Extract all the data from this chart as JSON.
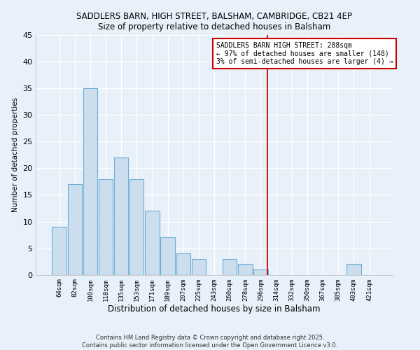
{
  "title": "SADDLERS BARN, HIGH STREET, BALSHAM, CAMBRIDGE, CB21 4EP",
  "subtitle": "Size of property relative to detached houses in Balsham",
  "xlabel": "Distribution of detached houses by size in Balsham",
  "ylabel": "Number of detached properties",
  "bar_labels": [
    "64sqm",
    "82sqm",
    "100sqm",
    "118sqm",
    "135sqm",
    "153sqm",
    "171sqm",
    "189sqm",
    "207sqm",
    "225sqm",
    "243sqm",
    "260sqm",
    "278sqm",
    "296sqm",
    "314sqm",
    "332sqm",
    "350sqm",
    "367sqm",
    "385sqm",
    "403sqm",
    "421sqm"
  ],
  "bar_values": [
    9,
    17,
    35,
    18,
    22,
    18,
    12,
    7,
    4,
    3,
    0,
    3,
    2,
    1,
    0,
    0,
    0,
    0,
    0,
    2,
    0
  ],
  "bar_color": "#ccdded",
  "bar_edge_color": "#6aafd6",
  "background_color": "#e8f0fa",
  "grid_color": "#ffffff",
  "ylim": [
    0,
    45
  ],
  "yticks": [
    0,
    5,
    10,
    15,
    20,
    25,
    30,
    35,
    40,
    45
  ],
  "vline_x": 13.42,
  "vline_color": "#cc0000",
  "annotation_title": "SADDLERS BARN HIGH STREET: 288sqm",
  "annotation_line1": "← 97% of detached houses are smaller (148)",
  "annotation_line2": "3% of semi-detached houses are larger (4) →",
  "footer_line1": "Contains HM Land Registry data © Crown copyright and database right 2025.",
  "footer_line2": "Contains public sector information licensed under the Open Government Licence v3.0."
}
